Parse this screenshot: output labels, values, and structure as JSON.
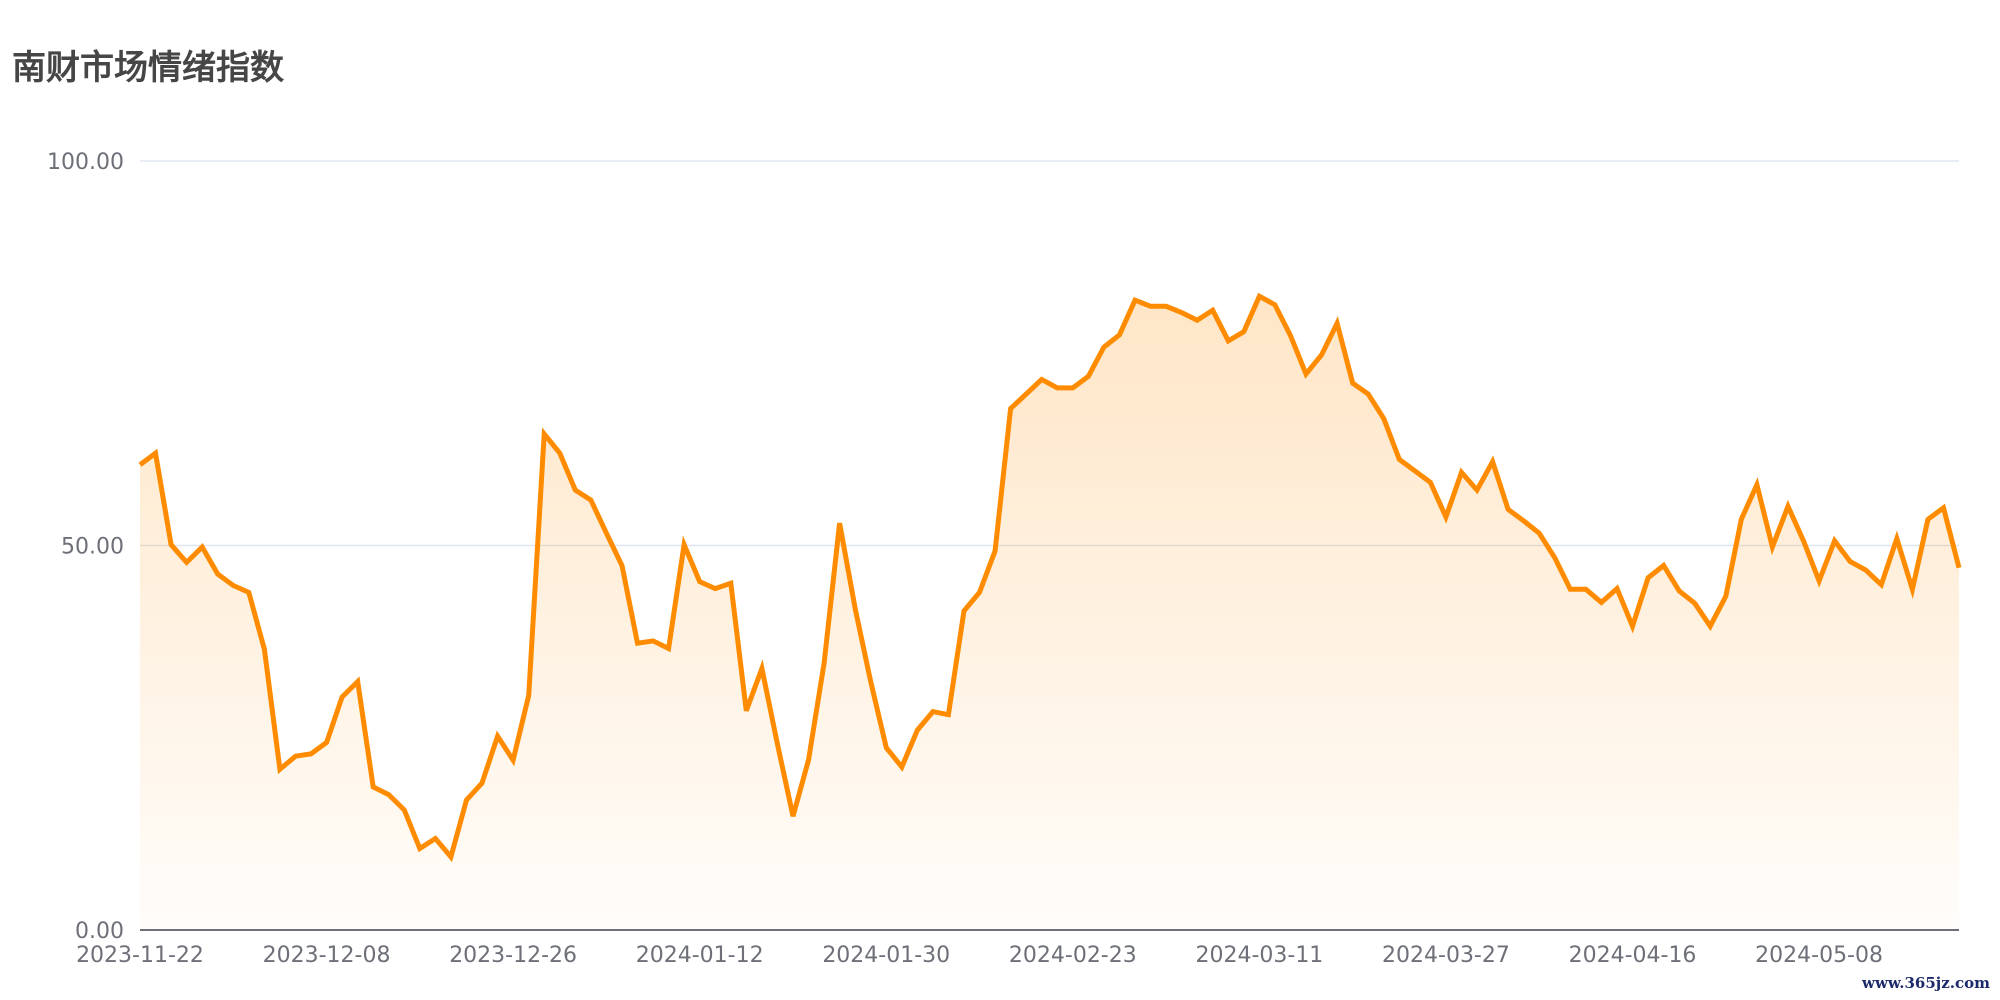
{
  "title": "南财市场情绪指数",
  "watermark": "www.365jz.com",
  "chart_data": {
    "type": "area",
    "title": "南财市场情绪指数",
    "xlabel": "",
    "ylabel": "",
    "ylim": [
      0,
      100
    ],
    "y_ticks": [
      "0.00",
      "50.00",
      "100.00"
    ],
    "y_tick_values": [
      0,
      50,
      100
    ],
    "x_ticks": [
      {
        "index": 0,
        "label": "2023-11-22"
      },
      {
        "index": 12,
        "label": "2023-12-08"
      },
      {
        "index": 24,
        "label": "2023-12-26"
      },
      {
        "index": 36,
        "label": "2024-01-12"
      },
      {
        "index": 48,
        "label": "2024-01-30"
      },
      {
        "index": 60,
        "label": "2024-02-23"
      },
      {
        "index": 72,
        "label": "2024-03-11"
      },
      {
        "index": 84,
        "label": "2024-03-27"
      },
      {
        "index": 96,
        "label": "2024-04-16"
      },
      {
        "index": 108,
        "label": "2024-05-08"
      }
    ],
    "grid": true,
    "line_color": "#ff8c00",
    "values": [
      60.5,
      62.0,
      50.1,
      47.8,
      49.8,
      46.3,
      44.8,
      43.9,
      36.5,
      20.9,
      22.6,
      22.9,
      24.4,
      30.3,
      32.3,
      18.6,
      17.6,
      15.6,
      10.6,
      11.9,
      9.5,
      16.9,
      19.1,
      25.2,
      22.1,
      30.5,
      64.5,
      62.0,
      57.2,
      55.9,
      51.6,
      47.4,
      37.3,
      37.6,
      36.6,
      50.1,
      45.3,
      44.4,
      45.1,
      28.5,
      34.0,
      24.2,
      14.8,
      22.1,
      34.7,
      52.9,
      41.8,
      32.3,
      23.7,
      21.2,
      26.0,
      28.4,
      28.0,
      41.5,
      43.9,
      49.3,
      67.8,
      69.7,
      71.6,
      70.5,
      70.5,
      72.0,
      75.8,
      77.4,
      81.9,
      81.1,
      81.1,
      80.3,
      79.3,
      80.6,
      76.6,
      77.8,
      82.4,
      81.3,
      77.3,
      72.3,
      74.8,
      78.9,
      71.1,
      69.7,
      66.5,
      61.2,
      59.7,
      58.2,
      53.7,
      59.5,
      57.2,
      60.9,
      54.7,
      53.2,
      51.6,
      48.4,
      44.3,
      44.3,
      42.6,
      44.4,
      39.5,
      45.8,
      47.4,
      44.1,
      42.5,
      39.5,
      43.4,
      53.4,
      57.9,
      49.8,
      55.1,
      50.6,
      45.4,
      50.6,
      47.9,
      46.8,
      44.9,
      50.9,
      44.3,
      53.4,
      54.9,
      47.1
    ]
  }
}
